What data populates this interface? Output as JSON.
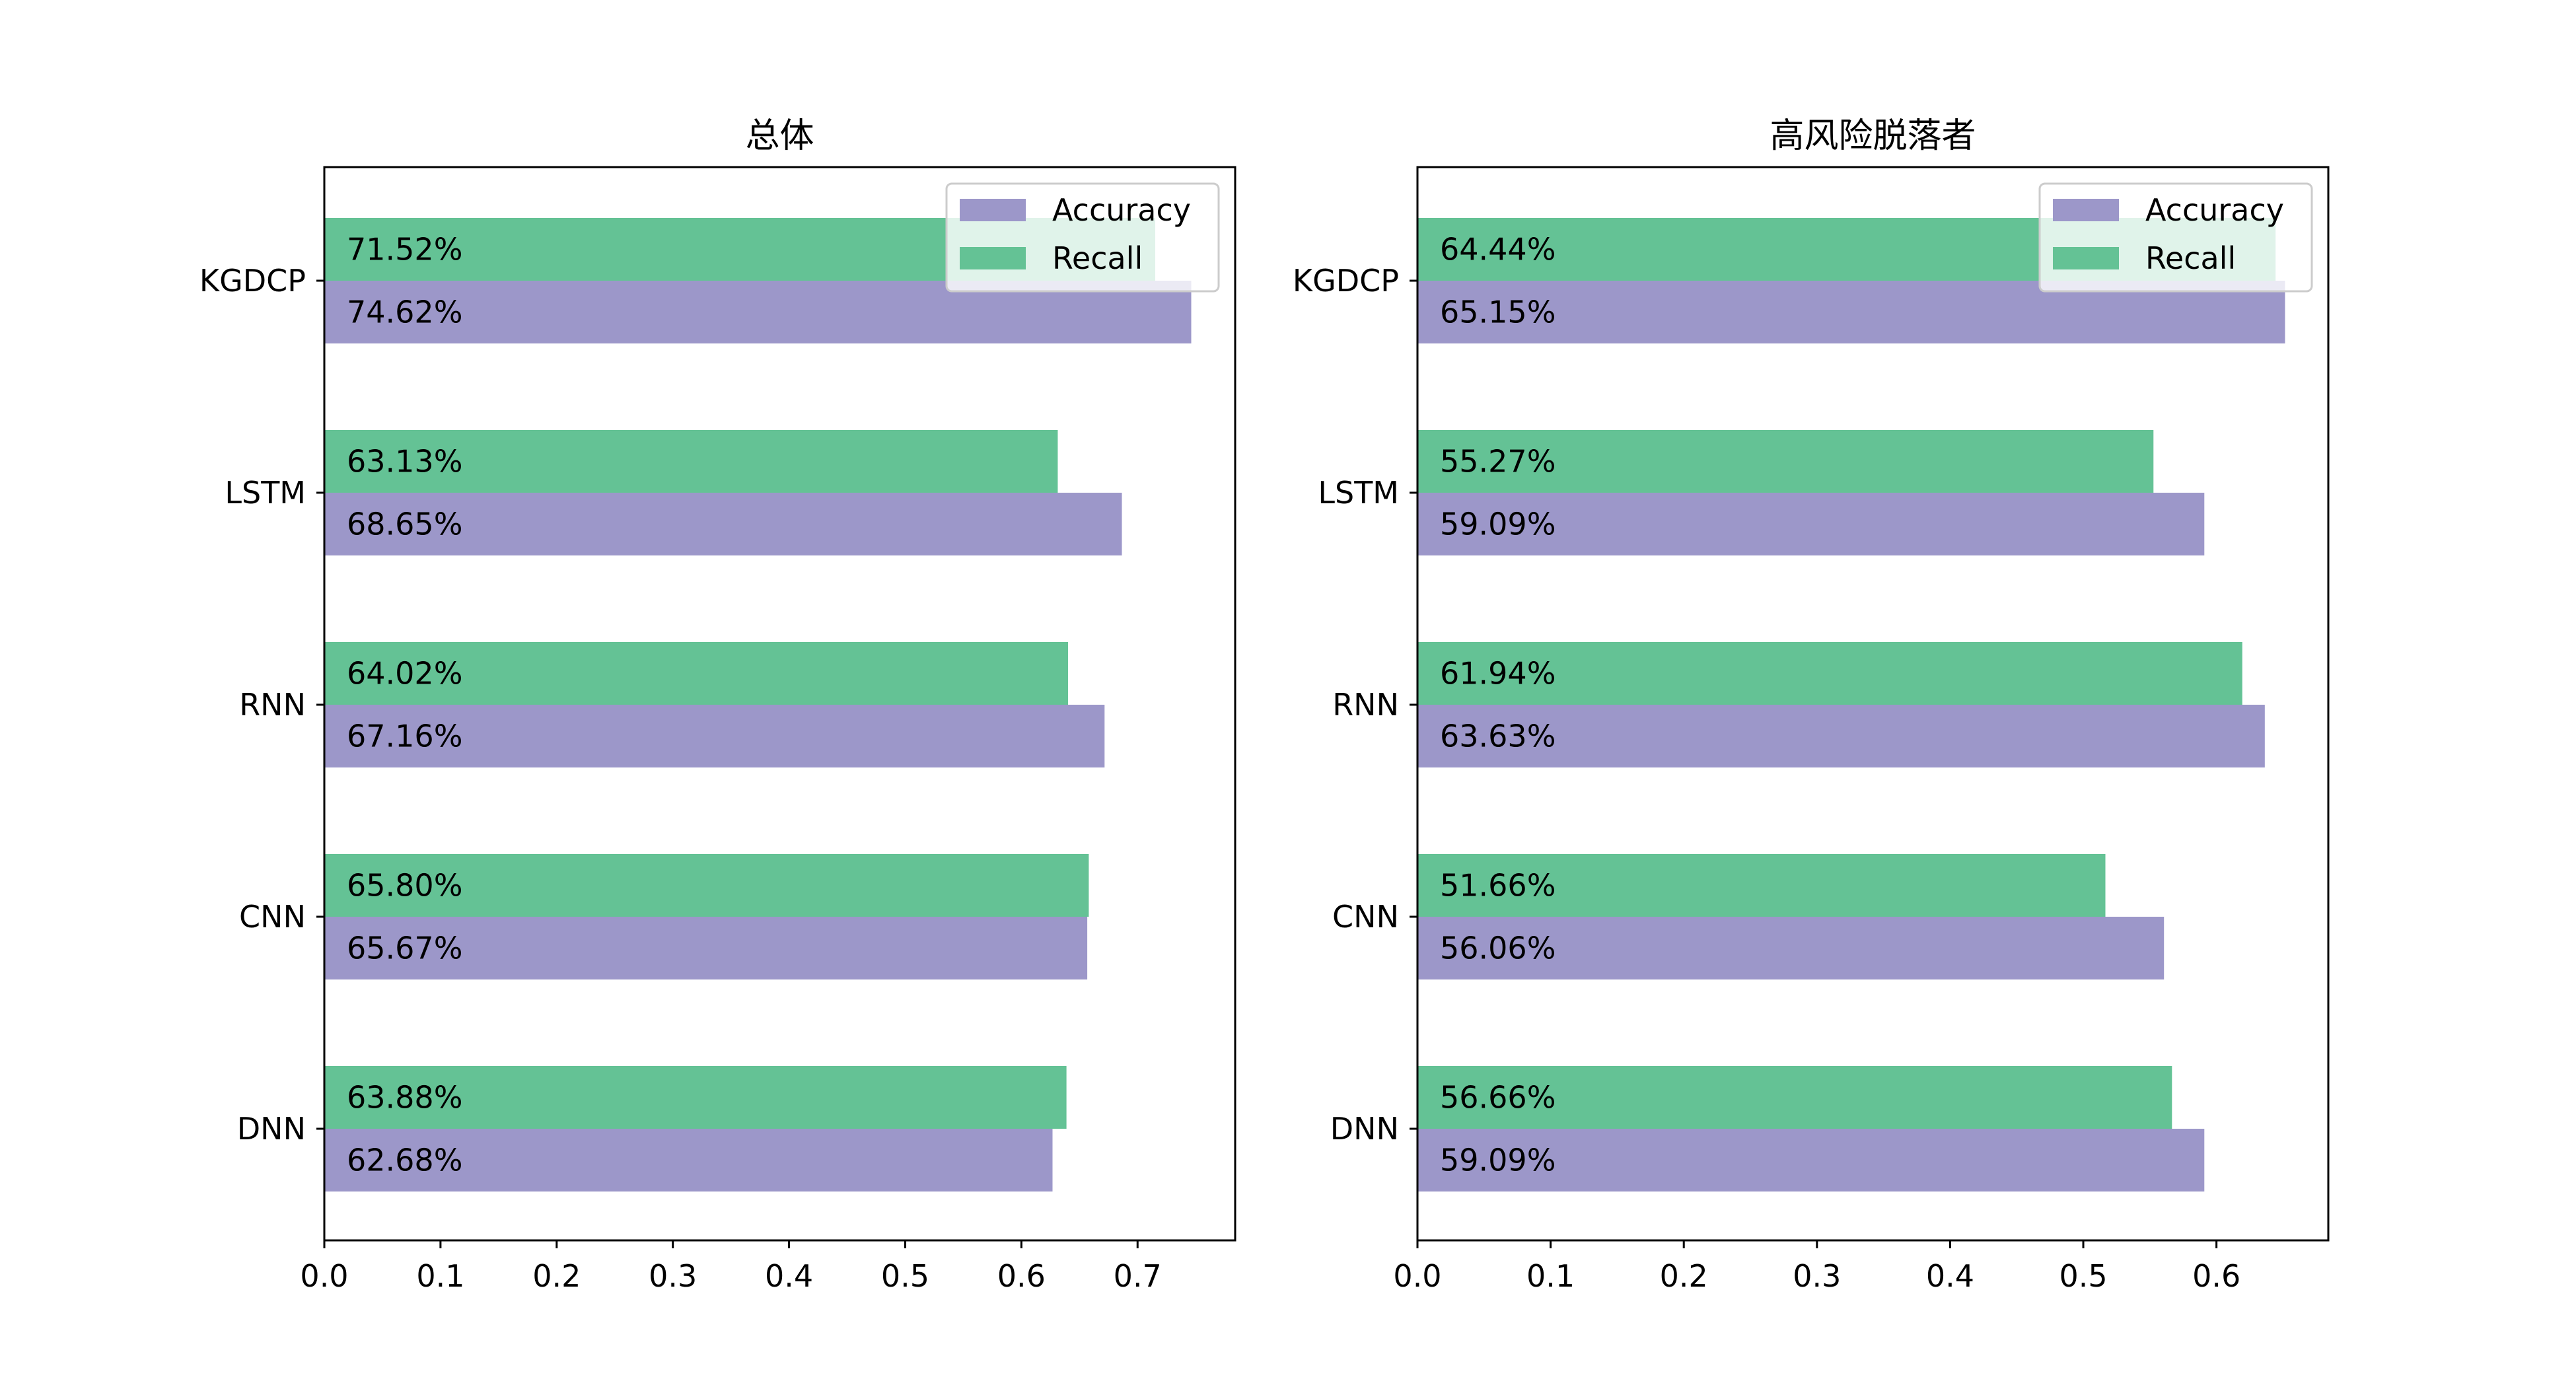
{
  "colors": {
    "accuracy": "#9c97c9",
    "recall": "#64c295",
    "background": "#ffffff",
    "axis": "#000000"
  },
  "chart_data": [
    {
      "type": "bar",
      "orientation": "horizontal",
      "title": "总体",
      "categories": [
        "DNN",
        "CNN",
        "RNN",
        "LSTM",
        "KGDCP"
      ],
      "series": [
        {
          "name": "Accuracy",
          "values": [
            0.6268,
            0.6567,
            0.6716,
            0.6865,
            0.7462
          ],
          "labels": [
            "62.68%",
            "65.67%",
            "67.16%",
            "68.65%",
            "74.62%"
          ]
        },
        {
          "name": "Recall",
          "values": [
            0.6388,
            0.658,
            0.6402,
            0.6313,
            0.7152
          ],
          "labels": [
            "63.88%",
            "65.80%",
            "64.02%",
            "63.13%",
            "71.52%"
          ]
        }
      ],
      "xlim": [
        0,
        0.784
      ],
      "xticks": [
        "0.0",
        "0.1",
        "0.2",
        "0.3",
        "0.4",
        "0.5",
        "0.6",
        "0.7"
      ],
      "legend": [
        "Accuracy",
        "Recall"
      ],
      "legend_position": "upper right"
    },
    {
      "type": "bar",
      "orientation": "horizontal",
      "title": "高风险脱落者",
      "categories": [
        "DNN",
        "CNN",
        "RNN",
        "LSTM",
        "KGDCP"
      ],
      "series": [
        {
          "name": "Accuracy",
          "values": [
            0.5909,
            0.5606,
            0.6363,
            0.5909,
            0.6515
          ],
          "labels": [
            "59.09%",
            "56.06%",
            "63.63%",
            "59.09%",
            "65.15%"
          ]
        },
        {
          "name": "Recall",
          "values": [
            0.5666,
            0.5166,
            0.6194,
            0.5527,
            0.6444
          ],
          "labels": [
            "56.66%",
            "51.66%",
            "61.94%",
            "55.27%",
            "64.44%"
          ]
        }
      ],
      "xlim": [
        0,
        0.684
      ],
      "xticks": [
        "0.0",
        "0.1",
        "0.2",
        "0.3",
        "0.4",
        "0.5",
        "0.6"
      ],
      "legend": [
        "Accuracy",
        "Recall"
      ],
      "legend_position": "upper right"
    }
  ]
}
